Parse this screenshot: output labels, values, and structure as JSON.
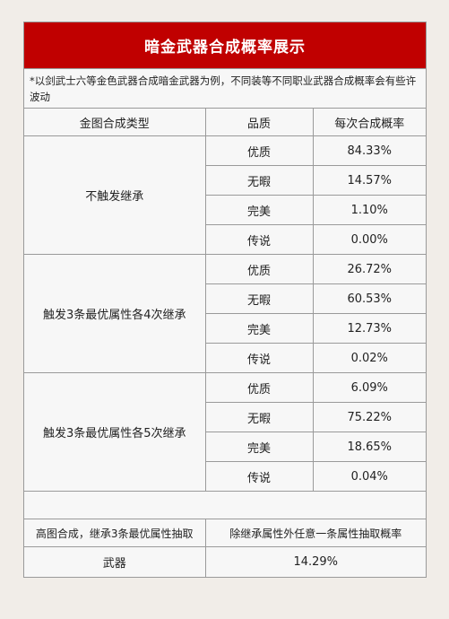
{
  "title": "暗金武器合成概率展示",
  "note": "*以剑武士六等金色武器合成暗金武器为例，不同装等不同职业武器合成概率会有些许波动",
  "headers": [
    "金图合成类型",
    "品质",
    "每次合成概率"
  ],
  "groups": [
    {
      "name": "不触发继承",
      "rows": [
        {
          "quality": "优质",
          "prob": "84.33%"
        },
        {
          "quality": "无暇",
          "prob": "14.57%"
        },
        {
          "quality": "完美",
          "prob": "1.10%"
        },
        {
          "quality": "传说",
          "prob": "0.00%"
        }
      ]
    },
    {
      "name": "触发3条最优属性各4次继承",
      "rows": [
        {
          "quality": "优质",
          "prob": "26.72%"
        },
        {
          "quality": "无暇",
          "prob": "60.53%"
        },
        {
          "quality": "完美",
          "prob": "12.73%"
        },
        {
          "quality": "传说",
          "prob": "0.02%"
        }
      ]
    },
    {
      "name": "触发3条最优属性各5次继承",
      "rows": [
        {
          "quality": "优质",
          "prob": "6.09%"
        },
        {
          "quality": "无暇",
          "prob": "75.22%"
        },
        {
          "quality": "完美",
          "prob": "18.65%"
        },
        {
          "quality": "传说",
          "prob": "0.04%"
        }
      ]
    }
  ],
  "footer": {
    "left_header": "高图合成，继承3条最优属性抽取",
    "right_header": "除继承属性外任意一条属性抽取概率",
    "item": "武器",
    "value": "14.29%"
  },
  "colors": {
    "title_bg": "#c00000",
    "border": "#9a9a9a"
  }
}
